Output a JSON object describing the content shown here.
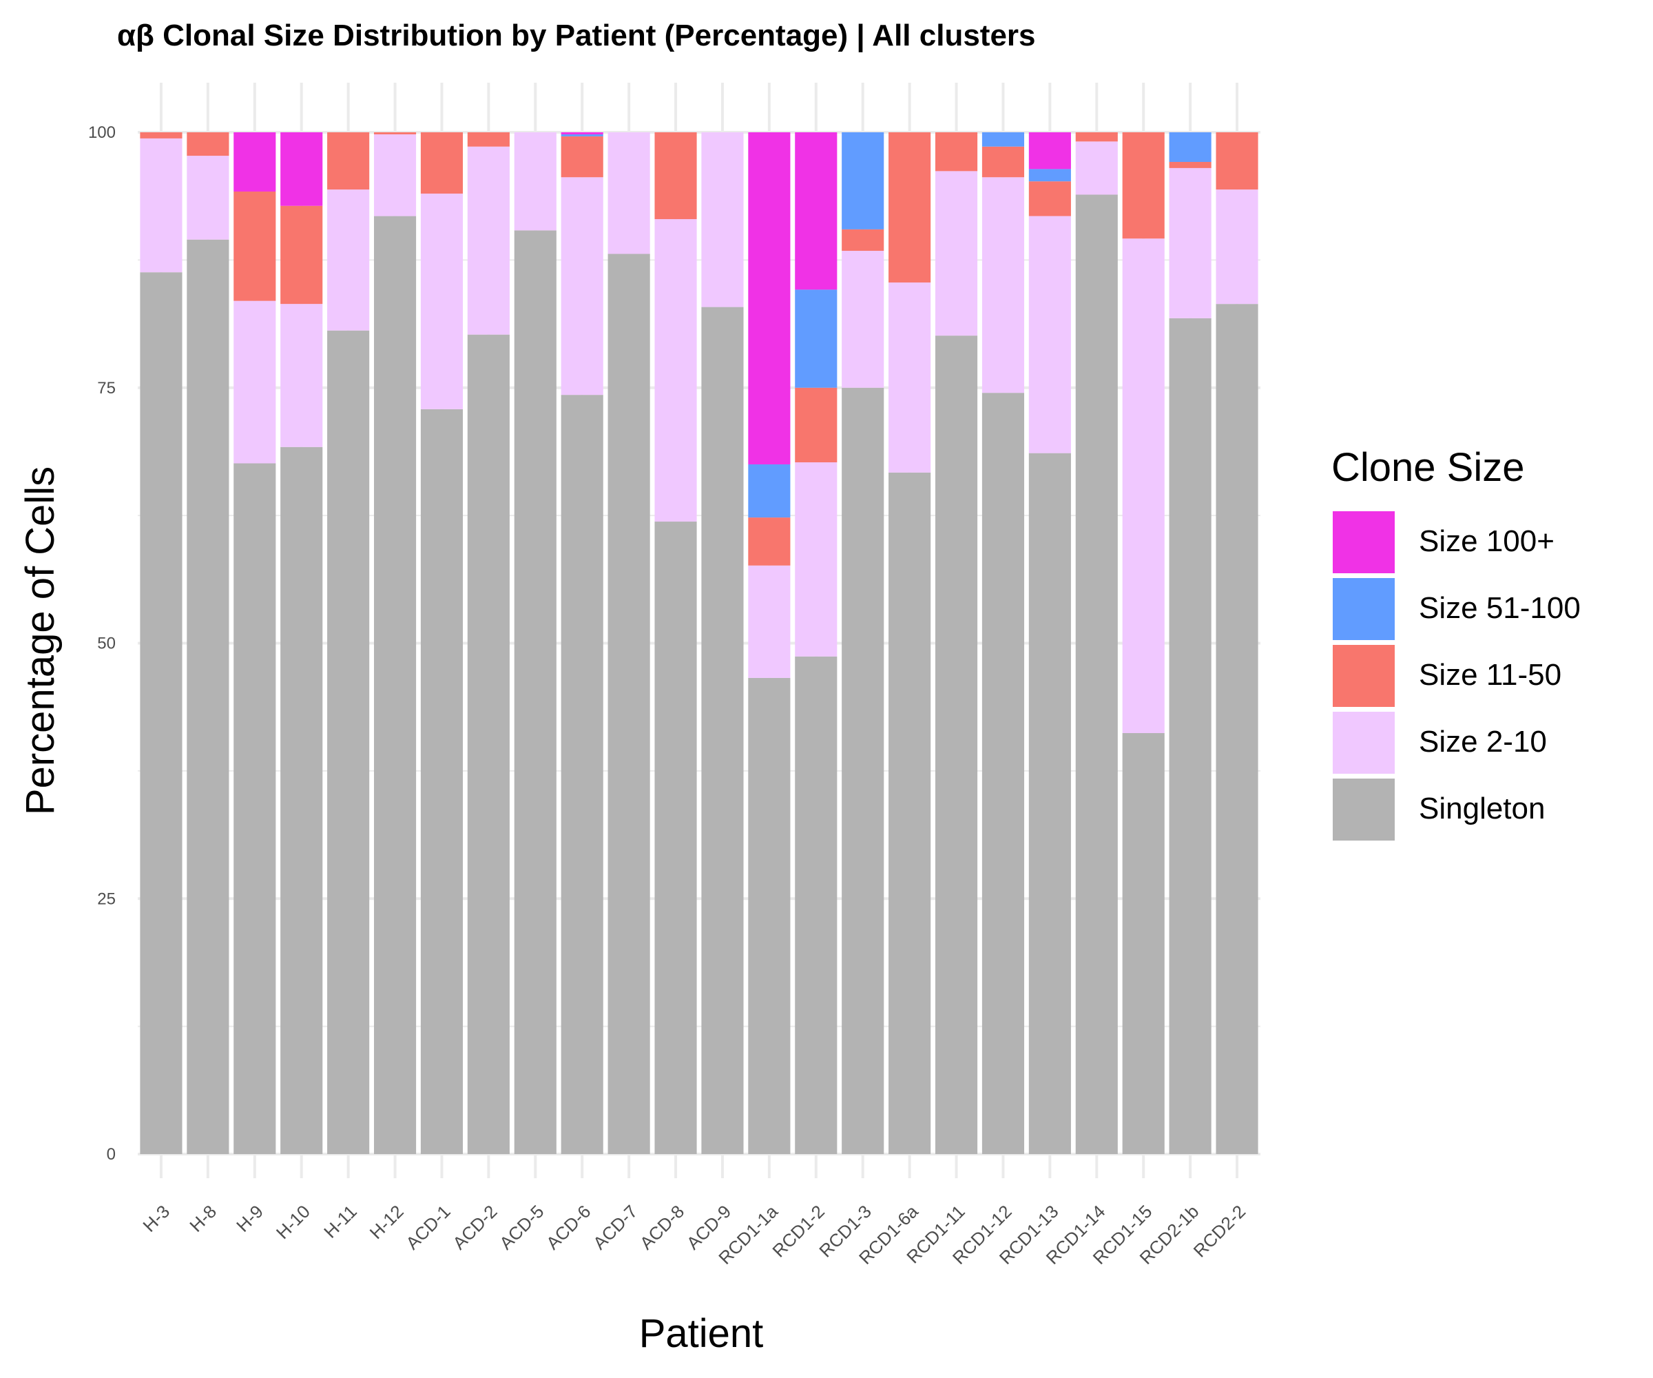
{
  "chart_data": {
    "type": "bar",
    "stacked": true,
    "title": "αβ Clonal Size Distribution by Patient (Percentage) | All clusters",
    "xlabel": "Patient",
    "ylabel": "Percentage of Cells",
    "ylim": [
      0,
      100
    ],
    "yticks": [
      0,
      25,
      50,
      75,
      100
    ],
    "grid": true,
    "legend_title": "Clone Size",
    "legend_position": "right",
    "categories": [
      "H-3",
      "H-8",
      "H-9",
      "H-10",
      "H-11",
      "H-12",
      "ACD-1",
      "ACD-2",
      "ACD-5",
      "ACD-6",
      "ACD-7",
      "ACD-8",
      "ACD-9",
      "RCD1-1a",
      "RCD1-2",
      "RCD1-3",
      "RCD1-6a",
      "RCD1-11",
      "RCD1-12",
      "RCD1-13",
      "RCD1-14",
      "RCD1-15",
      "RCD2-1b",
      "RCD2-2"
    ],
    "series": [
      {
        "name": "Singleton",
        "color": "#b3b3b3",
        "values": [
          86.3,
          89.5,
          67.6,
          69.2,
          80.6,
          91.8,
          72.9,
          80.2,
          90.4,
          74.3,
          88.1,
          61.9,
          82.9,
          46.6,
          48.7,
          75.0,
          66.7,
          80.1,
          74.5,
          68.6,
          93.9,
          41.2,
          81.8,
          83.2
        ]
      },
      {
        "name": "Size 2-10",
        "color": "#f0c8ff",
        "values": [
          13.1,
          8.2,
          15.9,
          14.0,
          13.8,
          8.0,
          21.1,
          18.4,
          9.6,
          21.3,
          11.9,
          29.6,
          17.1,
          11.0,
          19.0,
          13.4,
          18.6,
          16.1,
          21.1,
          23.2,
          5.2,
          48.4,
          14.7,
          11.2
        ]
      },
      {
        "name": "Size 11-50",
        "color": "#f8766d",
        "values": [
          0.6,
          2.3,
          10.7,
          9.6,
          5.6,
          0.2,
          6.0,
          1.4,
          0,
          4.0,
          0,
          8.5,
          0,
          4.7,
          7.3,
          2.1,
          14.7,
          3.8,
          3.0,
          3.4,
          0.9,
          10.4,
          0.6,
          5.6
        ]
      },
      {
        "name": "Size 51-100",
        "color": "#619cff",
        "values": [
          0,
          0,
          0,
          0,
          0,
          0,
          0,
          0,
          0,
          0.2,
          0,
          0,
          0,
          5.2,
          9.6,
          9.5,
          0,
          0,
          1.4,
          1.2,
          0,
          0,
          2.9,
          0
        ]
      },
      {
        "name": "Size 100+",
        "color": "#f032e6",
        "values": [
          0,
          0,
          5.8,
          7.2,
          0,
          0,
          0,
          0,
          0,
          0.2,
          0,
          0,
          0,
          32.5,
          15.4,
          0,
          0,
          0,
          0,
          3.6,
          0,
          0,
          0,
          0
        ]
      }
    ],
    "legend_order": [
      "Size 100+",
      "Size 51-100",
      "Size 11-50",
      "Size 2-10",
      "Singleton"
    ]
  }
}
